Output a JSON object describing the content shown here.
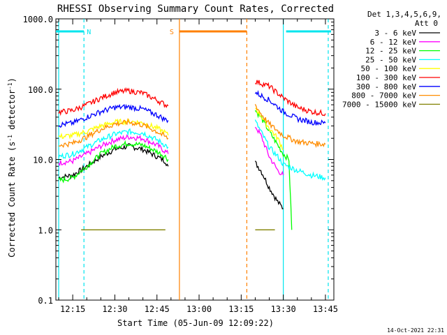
{
  "chart_data": {
    "type": "line",
    "title": "RHESSI Observing Summary Count Rates, Corrected",
    "xlabel": "Start Time (05-Jun-09 12:09:22)",
    "ylabel_main": "Corrected Count Rate (s",
    "ylabel_sup1": "-1",
    "ylabel_mid": " detector",
    "ylabel_sup2": "-1",
    "ylabel_end": ")",
    "y_scale": "log",
    "ylim": [
      0.1,
      1000
    ],
    "x_range_minutes": [
      "12:09",
      "13:48"
    ],
    "x_ticks": [
      "12:15",
      "12:30",
      "12:45",
      "13:00",
      "13:15",
      "13:30",
      "13:45"
    ],
    "y_ticks": [
      "1000.0",
      "100.0",
      "10.0",
      "1.0",
      "0.1"
    ],
    "legend_header": "Det 1,3,4,5,6,9,",
    "legend_header2": "Att 0",
    "legend_position": "top-right",
    "series": [
      {
        "name": "3 - 6 keV",
        "color": "#000000",
        "x": [
          "12:10",
          "12:15",
          "12:20",
          "12:25",
          "12:30",
          "12:35",
          "12:40",
          "12:45",
          "12:48",
          "12:49",
          "13:20",
          "13:22",
          "13:25",
          "13:28",
          "13:30"
        ],
        "y": [
          5.5,
          6,
          8,
          11,
          14,
          15.5,
          14,
          11,
          9.5,
          8,
          9,
          7,
          4,
          2.5,
          2
        ]
      },
      {
        "name": "6 - 12 keV",
        "color": "#ff00ff",
        "x": [
          "12:10",
          "12:15",
          "12:20",
          "12:25",
          "12:30",
          "12:35",
          "12:40",
          "12:45",
          "12:48",
          "12:49",
          "13:20",
          "13:22",
          "13:25",
          "13:28",
          "13:30"
        ],
        "y": [
          9,
          9.5,
          12,
          15.5,
          19,
          21,
          20,
          16,
          13,
          12,
          30,
          22,
          11,
          7,
          6
        ]
      },
      {
        "name": "12 - 25 keV",
        "color": "#00ff00",
        "x": [
          "12:10",
          "12:15",
          "12:20",
          "12:25",
          "12:30",
          "12:35",
          "12:40",
          "12:45",
          "12:48",
          "12:49",
          "13:20",
          "13:22",
          "13:25",
          "13:30",
          "13:32",
          "13:33"
        ],
        "y": [
          5,
          5.5,
          8,
          12,
          15.5,
          17,
          16,
          13,
          11,
          10,
          50,
          40,
          25,
          12,
          10,
          1
        ]
      },
      {
        "name": "25 - 50 keV",
        "color": "#00ffff",
        "x": [
          "12:10",
          "12:15",
          "12:20",
          "12:25",
          "12:30",
          "12:35",
          "12:40",
          "12:45",
          "12:48",
          "12:49",
          "13:20",
          "13:22",
          "13:25",
          "13:28",
          "13:30",
          "13:35",
          "13:40",
          "13:45"
        ],
        "y": [
          11,
          12,
          15,
          19,
          23,
          25,
          24,
          19,
          16,
          15,
          35,
          25,
          15,
          11,
          8.5,
          7,
          6,
          5.5
        ]
      },
      {
        "name": "50 - 100 keV",
        "color": "#ffff00",
        "x": [
          "12:10",
          "12:15",
          "12:20",
          "12:25",
          "12:30",
          "12:35",
          "12:40",
          "12:45",
          "12:48",
          "12:49",
          "13:20",
          "13:22",
          "13:25",
          "13:28",
          "13:30"
        ],
        "y": [
          21,
          22,
          25,
          30,
          34,
          35,
          33,
          28,
          24,
          22,
          55,
          42,
          28,
          20,
          14
        ]
      },
      {
        "name": "100 - 300 keV",
        "color": "#ff0000",
        "x": [
          "12:10",
          "12:15",
          "12:20",
          "12:25",
          "12:30",
          "12:35",
          "12:40",
          "12:45",
          "12:48",
          "12:49",
          "13:20",
          "13:25",
          "13:30",
          "13:35",
          "13:40",
          "13:45"
        ],
        "y": [
          47,
          50,
          60,
          75,
          90,
          95,
          88,
          70,
          60,
          58,
          130,
          110,
          75,
          55,
          48,
          45
        ]
      },
      {
        "name": "300 - 800 keV",
        "color": "#0000ff",
        "x": [
          "12:10",
          "12:15",
          "12:20",
          "12:25",
          "12:30",
          "12:35",
          "12:40",
          "12:45",
          "12:48",
          "12:49",
          "13:20",
          "13:25",
          "13:30",
          "13:35",
          "13:40",
          "13:45"
        ],
        "y": [
          31,
          33,
          40,
          48,
          55,
          56,
          52,
          43,
          37,
          36,
          90,
          70,
          48,
          38,
          34,
          33
        ]
      },
      {
        "name": "800 - 7000 keV",
        "color": "#ff8c00",
        "x": [
          "12:10",
          "12:15",
          "12:20",
          "12:25",
          "12:30",
          "12:35",
          "12:40",
          "12:45",
          "12:48",
          "12:49",
          "13:20",
          "13:22",
          "13:25",
          "13:30",
          "13:35",
          "13:40",
          "13:45"
        ],
        "y": [
          16,
          17,
          21,
          27,
          32,
          34,
          31,
          25,
          21,
          20,
          60,
          45,
          32,
          22,
          18,
          17,
          16.5
        ]
      },
      {
        "name": "7000 - 15000 keV",
        "color": "#808000",
        "x": [
          "12:18",
          "12:30",
          "12:40",
          "12:41",
          "12:48",
          "13:20",
          "13:25",
          "13:27"
        ],
        "y": [
          1,
          1,
          1,
          1,
          1,
          1,
          1,
          1
        ]
      }
    ],
    "flag_bars": [
      {
        "label": "N",
        "color": "#00e5ee",
        "segments": [
          [
            "12:09",
            "12:19"
          ],
          [
            "13:31",
            "13:47"
          ]
        ]
      },
      {
        "label": "S",
        "color": "#ff8000",
        "segments": [
          [
            "12:53",
            "13:17"
          ]
        ]
      }
    ],
    "vertical_lines": [
      {
        "x": "12:10",
        "color": "#00e5ee",
        "style": "solid"
      },
      {
        "x": "12:19",
        "color": "#00e5ee",
        "style": "dashed"
      },
      {
        "x": "12:53",
        "color": "#ff8000",
        "style": "solid"
      },
      {
        "x": "13:17",
        "color": "#ff8000",
        "style": "dashed"
      },
      {
        "x": "13:30",
        "color": "#00e5ee",
        "style": "solid"
      },
      {
        "x": "13:46",
        "color": "#00e5ee",
        "style": "dashed"
      }
    ],
    "grid": false,
    "timestamp": "14-Oct-2021 22:31"
  }
}
